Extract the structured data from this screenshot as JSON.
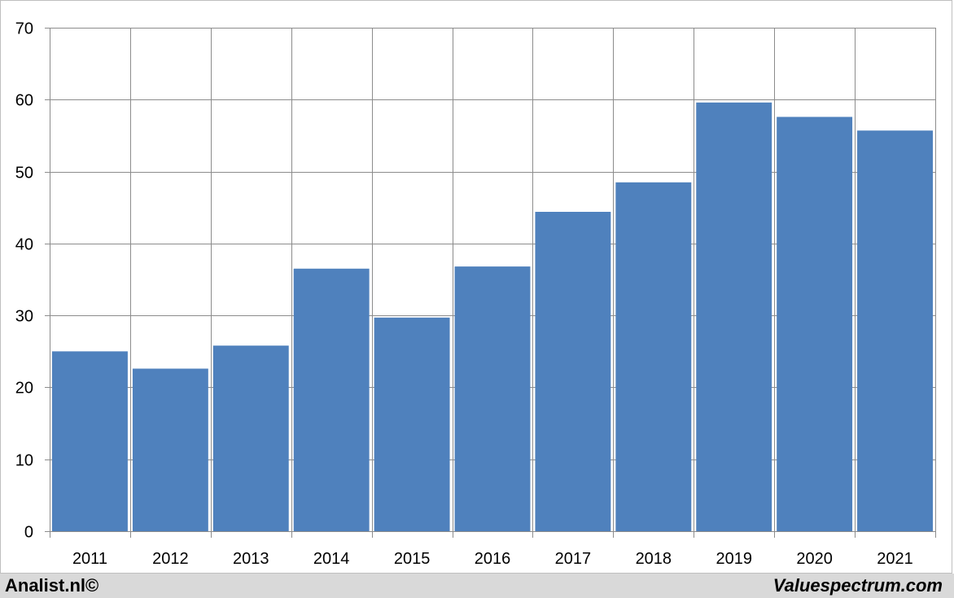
{
  "chart_data": {
    "type": "bar",
    "title": "",
    "xlabel": "",
    "ylabel": "",
    "categories": [
      "2011",
      "2012",
      "2013",
      "2014",
      "2015",
      "2016",
      "2017",
      "2018",
      "2019",
      "2020",
      "2021"
    ],
    "values": [
      25.0,
      22.6,
      25.8,
      36.5,
      29.7,
      36.8,
      44.4,
      48.5,
      59.6,
      57.6,
      55.7
    ],
    "ylim": [
      0,
      70
    ],
    "yticks": [
      0,
      10,
      20,
      30,
      40,
      50,
      60,
      70
    ],
    "grid": true,
    "bar_color": "#4f81bd"
  },
  "footer": {
    "left": "Analist.nl©",
    "right": "Valuespectrum.com"
  }
}
